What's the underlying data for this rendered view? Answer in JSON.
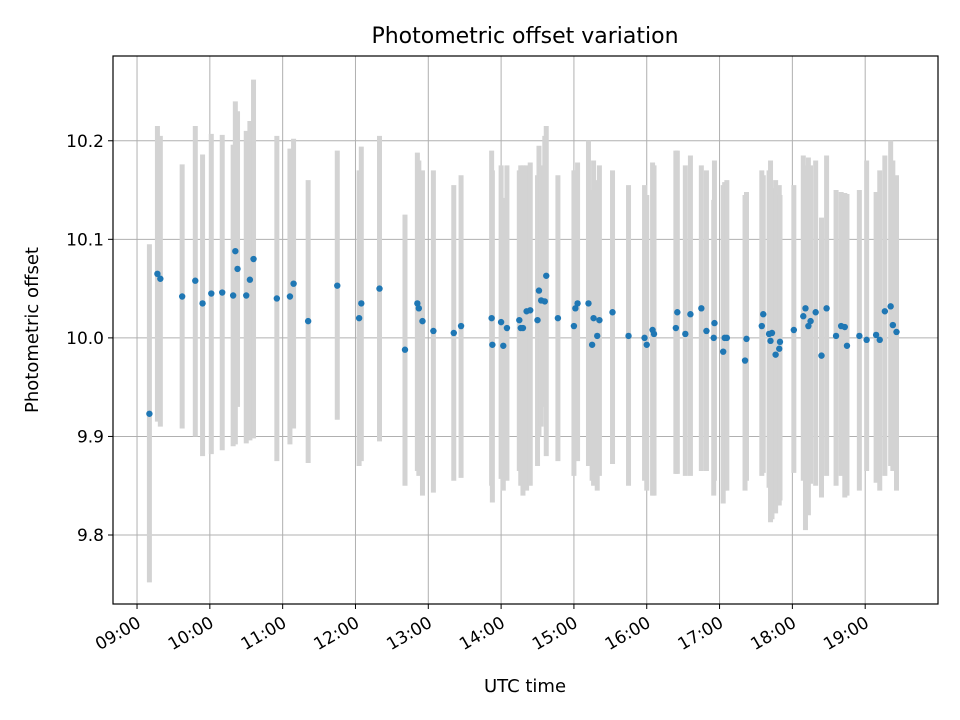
{
  "chart_data": {
    "type": "scatter",
    "title": "Photometric offset variation",
    "xlabel": "UTC time",
    "ylabel": "Photometric offset",
    "xlim_hours": [
      8.67,
      20.0
    ],
    "ylim": [
      9.73,
      10.286
    ],
    "grid": true,
    "x_ticks": [
      {
        "hour": 9,
        "label": "09:00"
      },
      {
        "hour": 10,
        "label": "10:00"
      },
      {
        "hour": 11,
        "label": "11:00"
      },
      {
        "hour": 12,
        "label": "12:00"
      },
      {
        "hour": 13,
        "label": "13:00"
      },
      {
        "hour": 14,
        "label": "14:00"
      },
      {
        "hour": 15,
        "label": "15:00"
      },
      {
        "hour": 16,
        "label": "16:00"
      },
      {
        "hour": 17,
        "label": "17:00"
      },
      {
        "hour": 18,
        "label": "18:00"
      },
      {
        "hour": 19,
        "label": "19:00"
      }
    ],
    "y_ticks": [
      {
        "value": 9.8,
        "label": "9.8"
      },
      {
        "value": 9.9,
        "label": "9.9"
      },
      {
        "value": 10.0,
        "label": "10.0"
      },
      {
        "value": 10.1,
        "label": "10.1"
      },
      {
        "value": 10.2,
        "label": "10.2"
      }
    ],
    "colors": {
      "points": "#1f77b4",
      "errorbars": "#d3d3d3",
      "grid": "#b0b0b0",
      "axes": "#000000"
    },
    "series": [
      {
        "name": "offset",
        "x_hours": [
          9.17,
          9.28,
          9.32,
          9.62,
          9.8,
          9.9,
          10.02,
          10.17,
          10.32,
          10.35,
          10.38,
          10.5,
          10.55,
          10.6,
          10.92,
          11.1,
          11.15,
          11.35,
          11.75,
          12.05,
          12.08,
          12.33,
          12.68,
          12.85,
          12.87,
          12.92,
          13.07,
          13.35,
          13.45,
          13.87,
          13.88,
          14.0,
          14.03,
          14.08,
          14.25,
          14.27,
          14.3,
          14.35,
          14.4,
          14.5,
          14.52,
          14.55,
          14.6,
          14.62,
          14.78,
          15.0,
          15.02,
          15.05,
          15.2,
          15.25,
          15.27,
          15.32,
          15.35,
          15.53,
          15.75,
          15.97,
          16.0,
          16.08,
          16.1,
          16.4,
          16.42,
          16.53,
          16.6,
          16.75,
          16.82,
          16.92,
          16.93,
          17.05,
          17.07,
          17.1,
          17.35,
          17.37,
          17.58,
          17.6,
          17.68,
          17.7,
          17.72,
          17.77,
          17.82,
          17.83,
          18.02,
          18.15,
          18.18,
          18.22,
          18.25,
          18.32,
          18.4,
          18.47,
          18.6,
          18.67,
          18.72,
          18.75,
          18.92,
          19.02,
          19.15,
          19.2,
          19.27,
          19.35,
          19.38,
          19.43
        ],
        "y": [
          9.923,
          10.065,
          10.06,
          10.042,
          10.058,
          10.035,
          10.045,
          10.046,
          10.043,
          10.088,
          10.07,
          10.043,
          10.059,
          10.08,
          10.04,
          10.042,
          10.055,
          10.017,
          10.053,
          10.02,
          10.035,
          10.05,
          9.988,
          10.035,
          10.03,
          10.017,
          10.007,
          10.005,
          10.012,
          10.02,
          9.993,
          10.016,
          9.992,
          10.01,
          10.018,
          10.01,
          10.01,
          10.027,
          10.028,
          10.018,
          10.048,
          10.038,
          10.037,
          10.063,
          10.02,
          10.012,
          10.03,
          10.035,
          10.035,
          9.993,
          10.02,
          10.002,
          10.018,
          10.026,
          10.002,
          10.0,
          9.993,
          10.008,
          10.004,
          10.01,
          10.026,
          10.004,
          10.024,
          10.03,
          10.007,
          10.0,
          10.015,
          9.986,
          10.0,
          10.0,
          9.977,
          9.999,
          10.012,
          10.024,
          10.004,
          9.997,
          10.005,
          9.983,
          9.989,
          9.996,
          10.008,
          10.022,
          10.03,
          10.012,
          10.017,
          10.026,
          9.982,
          10.03,
          10.002,
          10.012,
          10.011,
          9.992,
          10.002,
          9.998,
          10.003,
          9.998,
          10.027,
          10.032,
          10.013,
          10.006
        ],
        "err_low": [
          9.752,
          9.915,
          9.91,
          9.908,
          9.9,
          9.88,
          9.882,
          9.886,
          9.89,
          9.892,
          9.93,
          9.893,
          9.896,
          9.898,
          9.875,
          9.892,
          9.908,
          9.873,
          9.917,
          9.87,
          9.875,
          9.895,
          9.85,
          9.865,
          9.86,
          9.84,
          9.843,
          9.855,
          9.858,
          9.85,
          9.833,
          9.857,
          9.845,
          9.855,
          9.865,
          9.85,
          9.84,
          9.845,
          9.85,
          9.87,
          9.9,
          9.91,
          9.93,
          9.88,
          9.875,
          9.86,
          9.9,
          9.875,
          9.87,
          9.855,
          9.85,
          9.845,
          9.86,
          9.872,
          9.85,
          9.855,
          9.845,
          9.84,
          9.84,
          9.862,
          9.862,
          9.86,
          9.86,
          9.865,
          9.865,
          9.84,
          9.855,
          9.832,
          9.845,
          9.845,
          9.845,
          9.855,
          9.86,
          9.863,
          9.848,
          9.813,
          9.816,
          9.822,
          9.83,
          9.835,
          9.863,
          9.855,
          9.805,
          9.82,
          9.852,
          9.85,
          9.838,
          9.86,
          9.85,
          9.86,
          9.838,
          9.84,
          9.845,
          9.865,
          9.853,
          9.845,
          9.86,
          9.87,
          9.865,
          9.845
        ],
        "err_high": [
          10.095,
          10.215,
          10.205,
          10.176,
          10.215,
          10.186,
          10.207,
          10.206,
          10.196,
          10.24,
          10.23,
          10.21,
          10.22,
          10.262,
          10.205,
          10.192,
          10.202,
          10.16,
          10.19,
          10.17,
          10.194,
          10.205,
          10.125,
          10.188,
          10.18,
          10.17,
          10.17,
          10.155,
          10.165,
          10.19,
          10.17,
          10.175,
          10.142,
          10.175,
          10.17,
          10.175,
          10.175,
          10.175,
          10.178,
          10.165,
          10.195,
          10.175,
          10.205,
          10.215,
          10.165,
          10.17,
          10.17,
          10.178,
          10.2,
          10.15,
          10.18,
          10.16,
          10.175,
          10.17,
          10.155,
          10.155,
          10.145,
          10.178,
          10.175,
          10.19,
          10.19,
          10.175,
          10.185,
          10.175,
          10.17,
          10.14,
          10.18,
          10.155,
          10.158,
          10.16,
          10.145,
          10.148,
          10.17,
          10.165,
          10.17,
          10.18,
          10.152,
          10.16,
          10.155,
          10.145,
          10.155,
          10.185,
          10.175,
          10.183,
          10.175,
          10.18,
          10.122,
          10.185,
          10.15,
          10.148,
          10.147,
          10.146,
          10.15,
          10.18,
          10.148,
          10.17,
          10.185,
          10.2,
          10.18,
          10.165
        ]
      }
    ]
  }
}
